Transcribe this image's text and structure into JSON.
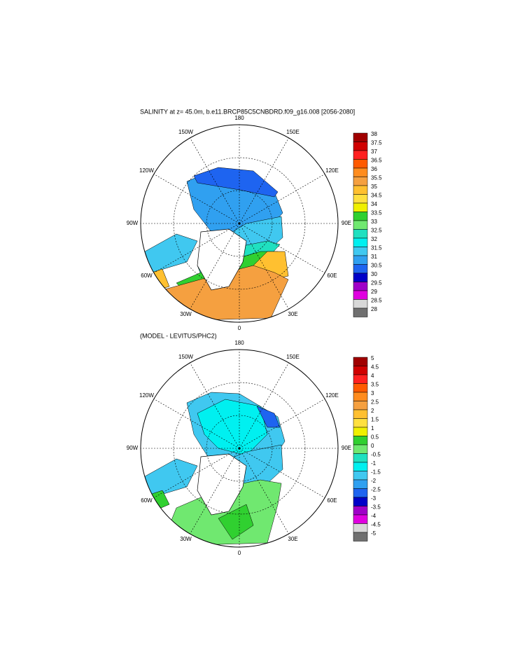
{
  "panels": [
    {
      "title": "SALINITY at z=  45.0m, b.e11.BRCP85C5CNBDRD.f09_g16.008 [2056-2080]",
      "lon_labels": [
        "180",
        "150E",
        "120E",
        "90E",
        "60E",
        "30E",
        "0",
        "30W",
        "60W",
        "90W",
        "120W",
        "150W"
      ],
      "colorbar": {
        "labels": [
          "38",
          "37.5",
          "37",
          "36.5",
          "36",
          "35.5",
          "35",
          "34.5",
          "34",
          "33.5",
          "33",
          "32.5",
          "32",
          "31.5",
          "31",
          "30.5",
          "30",
          "29.5",
          "29",
          "28.5",
          "28"
        ],
        "colors": [
          "#a00000",
          "#d00000",
          "#ff2020",
          "#ff5a00",
          "#ff8c1e",
          "#f5a040",
          "#ffc030",
          "#ffe040",
          "#f0f000",
          "#30d030",
          "#70e870",
          "#20e0c0",
          "#00f0f0",
          "#40c8f0",
          "#30a0f0",
          "#1e64f0",
          "#0000c8",
          "#a000c8",
          "#e000e0",
          "#d8d8d8",
          "#707070"
        ]
      }
    },
    {
      "title": "(MODEL - LEVITUS/PHC2)",
      "lon_labels": [
        "180",
        "150E",
        "120E",
        "90E",
        "60E",
        "30E",
        "0",
        "30W",
        "60W",
        "90W",
        "120W",
        "150W"
      ],
      "colorbar": {
        "labels": [
          "5",
          "4.5",
          "4",
          "3.5",
          "3",
          "2.5",
          "2",
          "1.5",
          "1",
          "0.5",
          "0",
          "-0.5",
          "-1",
          "-1.5",
          "-2",
          "-2.5",
          "-3",
          "-3.5",
          "-4",
          "-4.5",
          "-5"
        ],
        "colors": [
          "#a00000",
          "#d00000",
          "#ff2020",
          "#ff5a00",
          "#ff8c1e",
          "#f5a040",
          "#ffc030",
          "#ffe040",
          "#f0f000",
          "#30d030",
          "#70e870",
          "#20e0c0",
          "#00f0f0",
          "#40c8f0",
          "#30a0f0",
          "#1e64f0",
          "#0000c8",
          "#a000c8",
          "#e000e0",
          "#d8d8d8",
          "#707070"
        ]
      }
    }
  ]
}
